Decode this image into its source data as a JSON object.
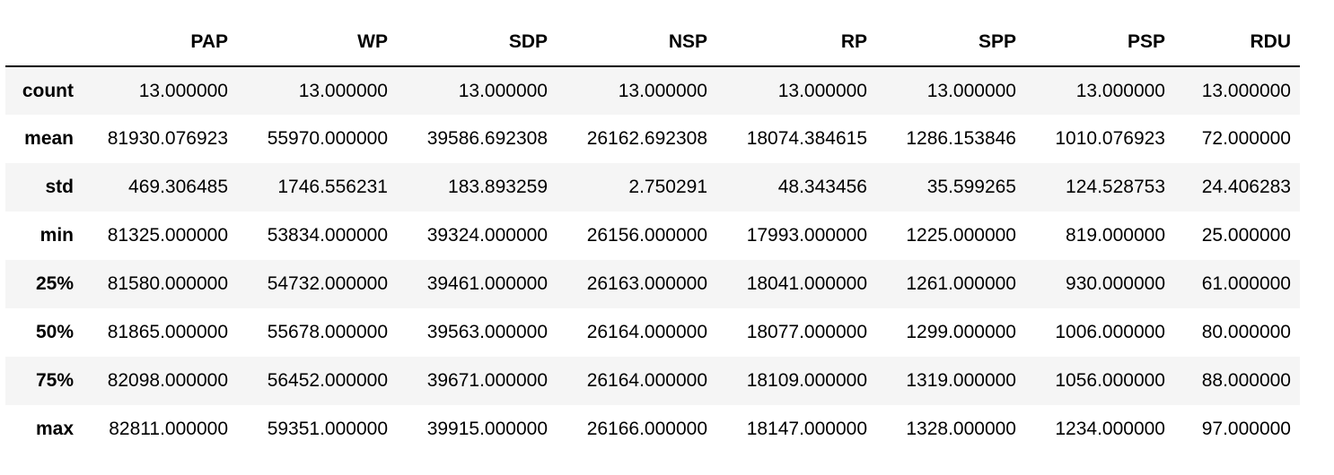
{
  "table": {
    "index_header": "",
    "columns": [
      "PAP",
      "WP",
      "SDP",
      "NSP",
      "RP",
      "SPP",
      "PSP",
      "RDU"
    ],
    "rows": [
      {
        "label": "count",
        "values": [
          "13.000000",
          "13.000000",
          "13.000000",
          "13.000000",
          "13.000000",
          "13.000000",
          "13.000000",
          "13.000000"
        ]
      },
      {
        "label": "mean",
        "values": [
          "81930.076923",
          "55970.000000",
          "39586.692308",
          "26162.692308",
          "18074.384615",
          "1286.153846",
          "1010.076923",
          "72.000000"
        ]
      },
      {
        "label": "std",
        "values": [
          "469.306485",
          "1746.556231",
          "183.893259",
          "2.750291",
          "48.343456",
          "35.599265",
          "124.528753",
          "24.406283"
        ]
      },
      {
        "label": "min",
        "values": [
          "81325.000000",
          "53834.000000",
          "39324.000000",
          "26156.000000",
          "17993.000000",
          "1225.000000",
          "819.000000",
          "25.000000"
        ]
      },
      {
        "label": "25%",
        "values": [
          "81580.000000",
          "54732.000000",
          "39461.000000",
          "26163.000000",
          "18041.000000",
          "1261.000000",
          "930.000000",
          "61.000000"
        ]
      },
      {
        "label": "50%",
        "values": [
          "81865.000000",
          "55678.000000",
          "39563.000000",
          "26164.000000",
          "18077.000000",
          "1299.000000",
          "1006.000000",
          "80.000000"
        ]
      },
      {
        "label": "75%",
        "values": [
          "82098.000000",
          "56452.000000",
          "39671.000000",
          "26164.000000",
          "18109.000000",
          "1319.000000",
          "1056.000000",
          "88.000000"
        ]
      },
      {
        "label": "max",
        "values": [
          "82811.000000",
          "59351.000000",
          "39915.000000",
          "26166.000000",
          "18147.000000",
          "1328.000000",
          "1234.000000",
          "97.000000"
        ]
      }
    ]
  }
}
